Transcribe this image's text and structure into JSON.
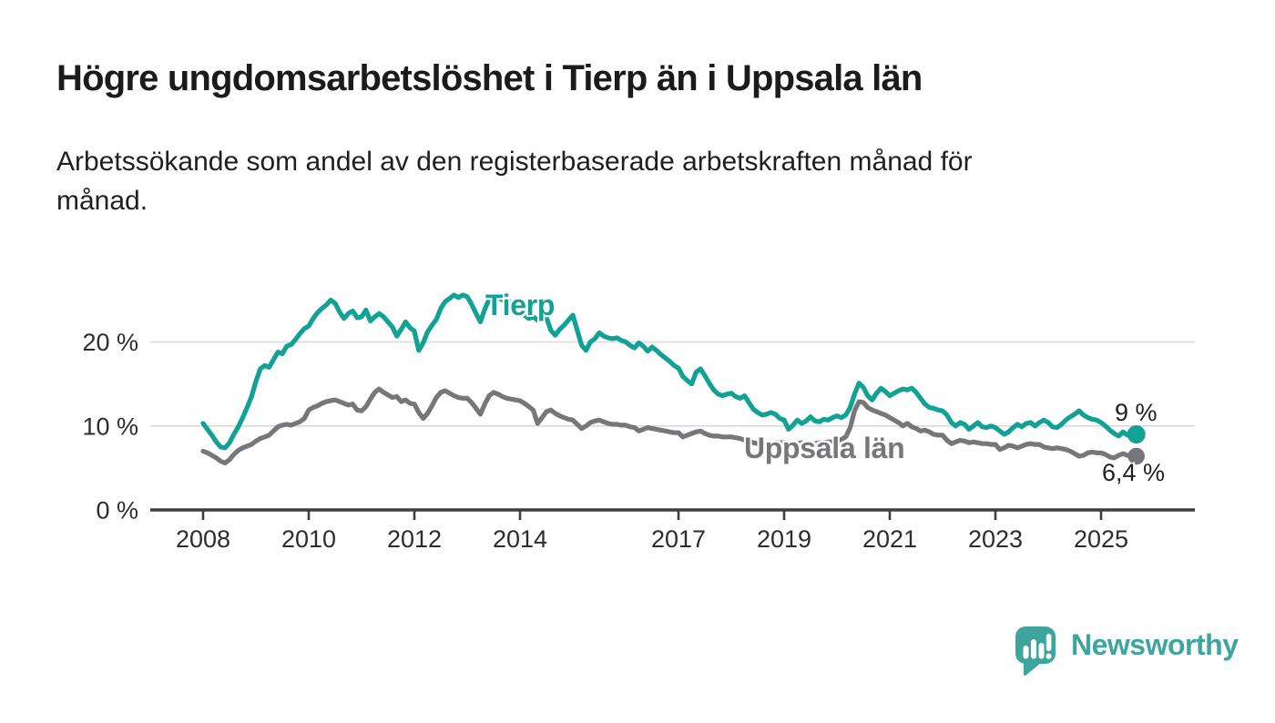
{
  "header": {
    "title": "Högre ungdomsarbetslöshet i Tierp än i Uppsala län",
    "subtitle_lines": [
      "Arbetssökande som andel av den registerbaserade arbetskraften månad för",
      "månad."
    ]
  },
  "colors": {
    "accent_teal": "#12A195",
    "series_gray": "#77767B",
    "grid": "#DBDBDB",
    "axis": "#3D3D3D",
    "text": "#1B1B1B",
    "brand_teal": "#3DA59D"
  },
  "chart_data": {
    "type": "line",
    "unit": "%",
    "frequency": "monthly",
    "x_start": "2008-01",
    "x_end": "2025-09",
    "xticks": [
      2008,
      2010,
      2012,
      2014,
      2017,
      2019,
      2021,
      2023,
      2025
    ],
    "yticks": [
      {
        "value": 0,
        "label": "0 %"
      },
      {
        "value": 10,
        "label": "10 %"
      },
      {
        "value": 20,
        "label": "20 %"
      }
    ],
    "ylim": [
      0,
      27
    ],
    "grid": "horizontal",
    "legend_position": "inline-labels",
    "series": [
      {
        "name": "Tierp",
        "color": "#12A195",
        "end_label": "9 %",
        "end_value": 9.0,
        "values": [
          10.3,
          9.6,
          8.9,
          8.1,
          7.5,
          7.4,
          8.0,
          9.0,
          9.9,
          11.0,
          12.2,
          13.5,
          15.3,
          16.8,
          17.2,
          17.0,
          17.9,
          18.8,
          18.6,
          19.5,
          19.7,
          20.3,
          21.0,
          21.6,
          21.9,
          22.8,
          23.5,
          24.0,
          24.4,
          25.0,
          24.6,
          23.6,
          22.8,
          23.4,
          23.7,
          22.9,
          23.0,
          23.8,
          22.5,
          23.0,
          23.4,
          23.0,
          22.4,
          21.8,
          20.7,
          21.5,
          22.4,
          21.7,
          21.3,
          19.0,
          19.9,
          21.2,
          22.0,
          22.7,
          24.0,
          24.8,
          25.2,
          25.6,
          25.3,
          25.6,
          25.4,
          24.5,
          23.4,
          22.4,
          23.9,
          25.1,
          25.6,
          25.3,
          25.0,
          25.2,
          24.6,
          24.0,
          23.6,
          23.2,
          22.8,
          23.0,
          22.6,
          22.9,
          22.9,
          21.4,
          20.8,
          21.5,
          22.0,
          22.6,
          23.2,
          21.4,
          19.6,
          19.0,
          20.0,
          20.4,
          21.1,
          20.7,
          20.5,
          20.4,
          20.5,
          20.2,
          20.0,
          19.6,
          19.3,
          19.9,
          19.5,
          18.9,
          19.4,
          19.0,
          18.5,
          18.1,
          17.7,
          17.2,
          16.9,
          15.9,
          15.4,
          15.0,
          16.4,
          16.8,
          16.0,
          15.1,
          14.3,
          13.8,
          13.6,
          13.8,
          13.9,
          13.5,
          13.3,
          13.6,
          12.8,
          12.0,
          11.6,
          11.3,
          11.4,
          11.6,
          11.4,
          10.9,
          10.7,
          9.6,
          10.1,
          10.7,
          10.3,
          10.6,
          11.1,
          10.6,
          10.5,
          10.8,
          10.7,
          11.0,
          11.2,
          11.0,
          11.3,
          12.2,
          13.8,
          15.1,
          14.6,
          13.6,
          13.1,
          13.9,
          14.5,
          14.1,
          13.6,
          13.9,
          14.2,
          14.4,
          14.3,
          14.5,
          14.0,
          13.3,
          12.6,
          12.2,
          12.1,
          11.9,
          11.8,
          11.3,
          10.4,
          10.0,
          10.4,
          10.2,
          9.6,
          10.0,
          10.4,
          9.9,
          9.8,
          10.0,
          9.8,
          9.4,
          9.0,
          9.3,
          9.8,
          10.2,
          9.9,
          10.3,
          10.4,
          10.0,
          10.4,
          10.7,
          10.4,
          9.9,
          9.8,
          10.2,
          10.7,
          11.1,
          11.4,
          11.8,
          11.3,
          11.0,
          10.8,
          10.7,
          10.4,
          10.0,
          9.5,
          9.1,
          8.8,
          9.3,
          8.9,
          9.1,
          9.0
        ]
      },
      {
        "name": "Uppsala län",
        "color": "#77767B",
        "end_label": "6,4 %",
        "end_value": 6.4,
        "values": [
          7.0,
          6.8,
          6.5,
          6.2,
          5.8,
          5.6,
          6.0,
          6.6,
          7.1,
          7.4,
          7.6,
          7.8,
          8.2,
          8.5,
          8.7,
          8.9,
          9.4,
          9.9,
          10.1,
          10.2,
          10.1,
          10.3,
          10.5,
          10.9,
          11.9,
          12.2,
          12.4,
          12.7,
          12.9,
          13.0,
          13.1,
          12.9,
          12.7,
          12.5,
          12.6,
          11.9,
          11.8,
          12.3,
          13.2,
          14.0,
          14.4,
          14.0,
          13.7,
          13.4,
          13.5,
          12.9,
          13.1,
          12.7,
          12.6,
          11.6,
          10.9,
          11.5,
          12.4,
          13.4,
          14.0,
          14.2,
          13.9,
          13.6,
          13.4,
          13.3,
          13.3,
          12.8,
          12.1,
          11.4,
          12.6,
          13.6,
          14.0,
          13.8,
          13.5,
          13.3,
          13.2,
          13.1,
          13.0,
          12.7,
          12.3,
          11.9,
          10.3,
          11.0,
          11.7,
          11.9,
          11.5,
          11.2,
          11.0,
          10.8,
          10.7,
          10.2,
          9.7,
          10.0,
          10.4,
          10.6,
          10.7,
          10.5,
          10.3,
          10.2,
          10.2,
          10.1,
          10.1,
          9.9,
          9.8,
          9.4,
          9.6,
          9.8,
          9.7,
          9.6,
          9.5,
          9.4,
          9.3,
          9.2,
          9.2,
          8.7,
          8.9,
          9.1,
          9.3,
          9.4,
          9.1,
          8.9,
          8.8,
          8.8,
          8.7,
          8.7,
          8.7,
          8.6,
          8.5,
          8.3,
          8.2,
          8.0,
          7.9,
          7.9,
          7.8,
          7.9,
          8.0,
          8.0,
          8.0,
          7.9,
          7.8,
          7.9,
          8.0,
          7.9,
          7.8,
          7.9,
          8.0,
          8.0,
          8.1,
          8.1,
          8.2,
          8.4,
          8.7,
          9.8,
          11.8,
          12.9,
          12.8,
          12.2,
          11.9,
          11.7,
          11.5,
          11.3,
          11.0,
          10.7,
          10.4,
          10.0,
          10.3,
          9.9,
          9.7,
          9.4,
          9.5,
          9.3,
          9.0,
          8.9,
          8.9,
          8.3,
          7.9,
          8.1,
          8.3,
          8.2,
          8.0,
          8.1,
          8.0,
          7.9,
          7.9,
          7.8,
          7.8,
          7.2,
          7.4,
          7.7,
          7.6,
          7.4,
          7.6,
          7.8,
          7.9,
          7.8,
          7.8,
          7.5,
          7.4,
          7.3,
          7.4,
          7.3,
          7.2,
          7.0,
          6.7,
          6.4,
          6.5,
          6.8,
          6.9,
          6.8,
          6.8,
          6.6,
          6.3,
          6.2,
          6.5,
          6.7,
          6.5,
          6.3,
          6.4
        ]
      }
    ]
  },
  "footer": {
    "brand": "Newsworthy"
  }
}
